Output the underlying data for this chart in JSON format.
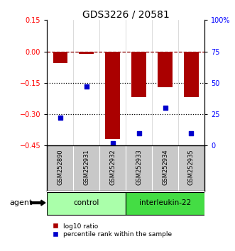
{
  "title": "GDS3226 / 20581",
  "samples": [
    "GSM252890",
    "GSM252931",
    "GSM252932",
    "GSM252933",
    "GSM252934",
    "GSM252935"
  ],
  "log10_ratio": [
    -0.055,
    -0.01,
    -0.42,
    -0.22,
    -0.17,
    -0.22
  ],
  "percentile_rank": [
    22,
    47,
    2,
    10,
    30,
    10
  ],
  "ylim_left": [
    -0.45,
    0.15
  ],
  "ylim_right": [
    0,
    100
  ],
  "yticks_left": [
    0.15,
    0,
    -0.15,
    -0.3,
    -0.45
  ],
  "yticks_right": [
    100,
    75,
    50,
    25,
    0
  ],
  "groups": [
    {
      "label": "control",
      "indices": [
        0,
        1,
        2
      ],
      "color": "#AAFFAA"
    },
    {
      "label": "interleukin-22",
      "indices": [
        3,
        4,
        5
      ],
      "color": "#44DD44"
    }
  ],
  "bar_color": "#AA0000",
  "dot_color": "#0000CC",
  "bar_width": 0.55,
  "background_color": "#ffffff",
  "legend_red_label": "log10 ratio",
  "legend_blue_label": "percentile rank within the sample",
  "agent_label": "agent"
}
